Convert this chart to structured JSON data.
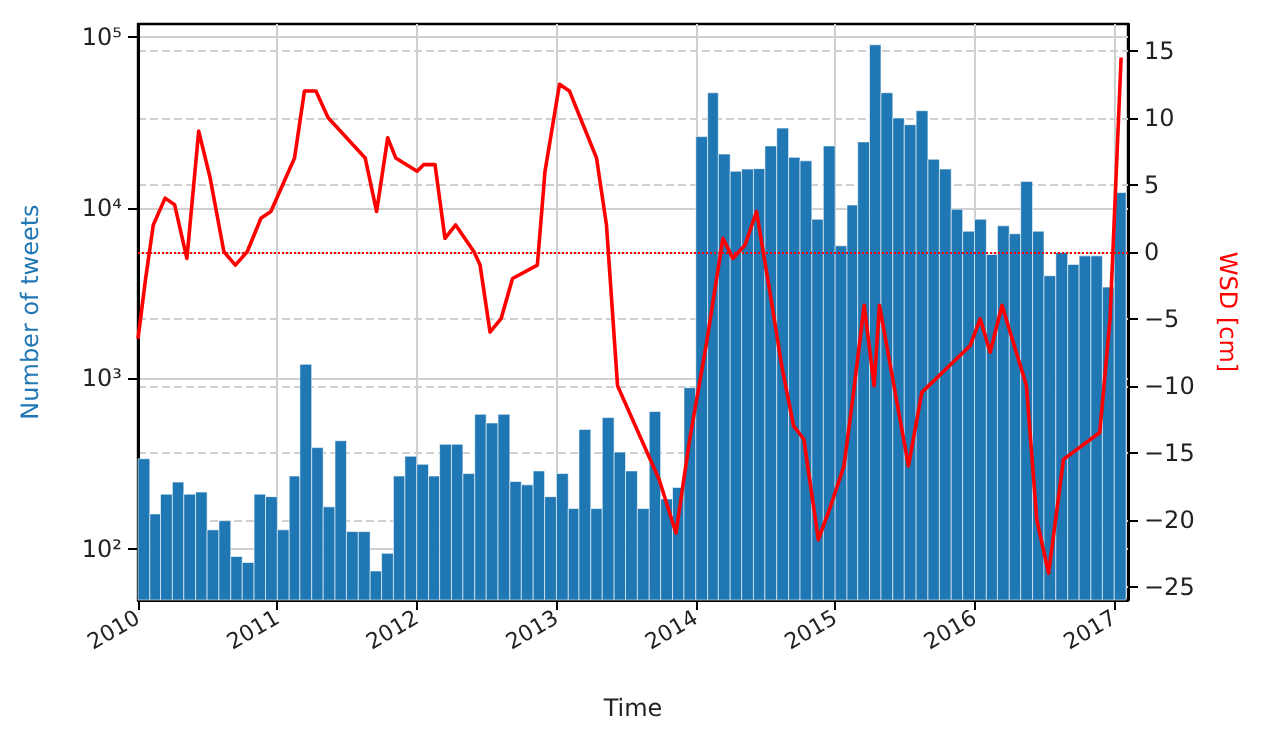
{
  "chart_data": {
    "type": "bar",
    "xlabel": "Time",
    "ylabel": "Number of tweets",
    "y2label": "WSD [cm]",
    "log": "y",
    "grid": true,
    "xlim": [
      "2010-01-01",
      "2017-02-06"
    ],
    "xticks": [
      "2010",
      "2011",
      "2012",
      "2013",
      "2014",
      "2015",
      "2016",
      "2017"
    ],
    "ylim": [
      50,
      120000
    ],
    "yticks": [
      {
        "value": 100,
        "label": "10²"
      },
      {
        "value": 1000,
        "label": "10³"
      },
      {
        "value": 10000,
        "label": "10⁴"
      },
      {
        "value": 100000,
        "label": "10⁵"
      }
    ],
    "y2lim": [
      -26,
      17
    ],
    "y2ticks": [
      -25,
      -20,
      -15,
      -10,
      -5,
      0,
      5,
      10,
      15
    ],
    "ref_lines": [
      {
        "axis": "y2",
        "value": 0,
        "color": "#ff0000",
        "line_style": "dotted"
      }
    ],
    "series": [
      {
        "color": "#1f77b4",
        "x": [
          "2010-01",
          "2010-02",
          "2010-03",
          "2010-04",
          "2010-05",
          "2010-06",
          "2010-07",
          "2010-08",
          "2010-09",
          "2010-10",
          "2010-11",
          "2010-12",
          "2011-01",
          "2011-02",
          "2011-03",
          "2011-04",
          "2011-05",
          "2011-06",
          "2011-07",
          "2011-08",
          "2011-09",
          "2011-10",
          "2011-11",
          "2011-12",
          "2012-01",
          "2012-02",
          "2012-03",
          "2012-04",
          "2012-05",
          "2012-06",
          "2012-07",
          "2012-08",
          "2012-09",
          "2012-10",
          "2012-11",
          "2012-12",
          "2013-01",
          "2013-02",
          "2013-03",
          "2013-04",
          "2013-05",
          "2013-06",
          "2013-07",
          "2013-08",
          "2013-09",
          "2013-10",
          "2013-11",
          "2013-12",
          "2014-01",
          "2014-02",
          "2014-03",
          "2014-04",
          "2014-05",
          "2014-06",
          "2014-07",
          "2014-08",
          "2014-09",
          "2014-10",
          "2014-11",
          "2014-12",
          "2015-01",
          "2015-02",
          "2015-03",
          "2015-04",
          "2015-05",
          "2015-06",
          "2015-07",
          "2015-08",
          "2015-09",
          "2015-10",
          "2015-11",
          "2015-12",
          "2016-01",
          "2016-02",
          "2016-03",
          "2016-04",
          "2016-05",
          "2016-06",
          "2016-07",
          "2016-08",
          "2016-09",
          "2016-10",
          "2016-11",
          "2016-12",
          "2017-01"
        ],
        "values": [
          337,
          160,
          209,
          246,
          209,
          215,
          129,
          146,
          90,
          83,
          209,
          202,
          129,
          267,
          1208,
          392,
          176,
          430,
          126,
          126,
          74,
          94,
          267,
          349,
          313,
          267,
          410,
          410,
          276,
          615,
          547,
          615,
          248,
          237,
          286,
          202,
          276,
          172,
          501,
          172,
          588,
          369,
          286,
          172,
          638,
          196,
          229,
          881,
          26200,
          47400,
          20700,
          16400,
          16900,
          17000,
          23100,
          29400,
          19800,
          18900,
          8590,
          23100,
          5990,
          10400,
          24400,
          90600,
          47400,
          33700,
          30800,
          37200,
          19300,
          16900,
          9820,
          7300,
          8590,
          5330,
          7850,
          7050,
          14300,
          7300,
          4000,
          5470,
          4660,
          5230,
          5230,
          3430,
          12300
        ]
      },
      {
        "type": "line",
        "axis": "y2",
        "color": "#ff0000",
        "x": [
          "2010-01-01",
          "2010-01-21",
          "2010-02-10",
          "2010-03-13",
          "2010-04-07",
          "2010-05-09",
          "2010-06-09",
          "2010-07-09",
          "2010-08-14",
          "2010-09-13",
          "2010-10-14",
          "2010-11-19",
          "2010-12-15",
          "2011-02-15",
          "2011-03-13",
          "2011-04-12",
          "2011-05-14",
          "2011-08-19",
          "2011-09-18",
          "2011-10-17",
          "2011-11-07",
          "2012-01-02",
          "2012-01-19",
          "2012-02-18",
          "2012-03-15",
          "2012-04-12",
          "2012-05-30",
          "2012-06-15",
          "2012-07-11",
          "2012-08-09",
          "2012-09-08",
          "2012-11-12",
          "2012-12-02",
          "2013-01-09",
          "2013-02-04",
          "2013-04-16",
          "2013-05-12",
          "2013-06-10",
          "2013-09-27",
          "2013-11-10",
          "2013-12-16",
          "2014-01-28",
          "2014-03-13",
          "2014-04-08",
          "2014-05-10",
          "2014-06-09",
          "2014-07-14",
          "2014-08-14",
          "2014-09-14",
          "2014-10-11",
          "2014-11-18",
          "2014-12-20",
          "2015-01-24",
          "2015-02-16",
          "2015-03-18",
          "2015-04-13",
          "2015-04-27",
          "2015-07-12",
          "2015-08-16",
          "2015-12-21",
          "2016-01-16",
          "2016-02-11",
          "2016-03-13",
          "2016-05-16",
          "2016-06-12",
          "2016-07-13",
          "2016-08-21",
          "2016-11-24",
          "2016-12-21",
          "2017-01-19"
        ],
        "values": [
          -6.5,
          -2,
          2,
          4,
          3.5,
          -0.5,
          9,
          5.5,
          0,
          -1,
          0,
          2.5,
          3,
          7,
          12,
          12,
          10,
          7,
          3,
          8.5,
          7,
          6,
          6.5,
          6.5,
          1,
          2,
          0,
          -1,
          -6,
          -5,
          -2,
          -1,
          6,
          12.5,
          12,
          7,
          2,
          -10,
          -17,
          -21,
          -14,
          -7,
          1,
          -0.5,
          0.5,
          3,
          -3,
          -8.5,
          -13,
          -14,
          -21.5,
          -19,
          -16,
          -11,
          -4,
          -10,
          -4,
          -16,
          -10.5,
          -7,
          -5,
          -7.5,
          -4,
          -10,
          -20,
          -24,
          -15.5,
          -13.5,
          -5,
          14.5
        ]
      }
    ]
  }
}
